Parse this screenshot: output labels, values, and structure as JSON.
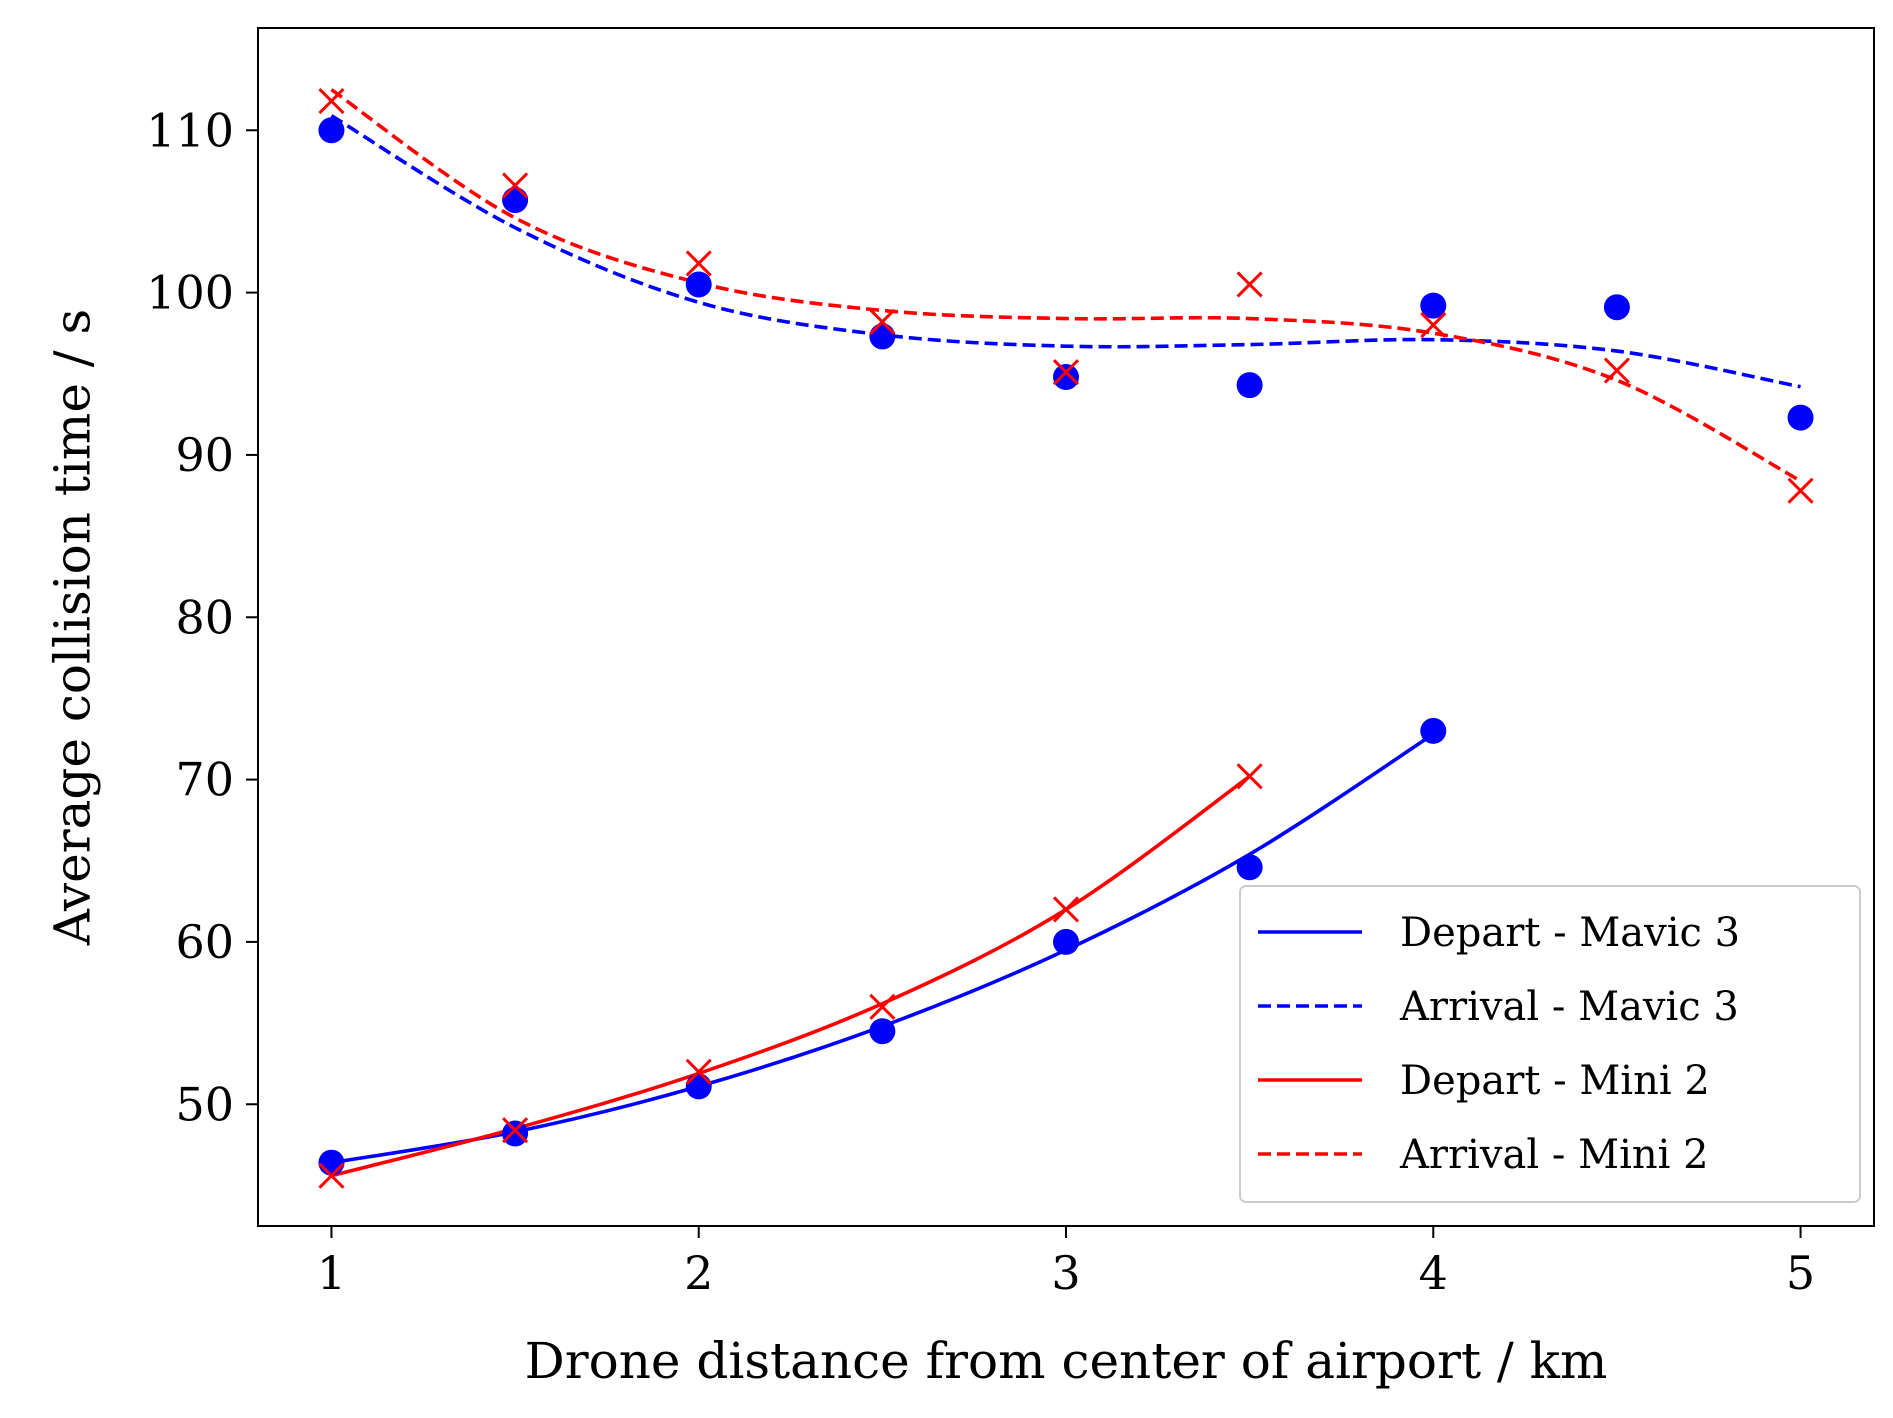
{
  "chart_data": {
    "type": "scatter",
    "title": "",
    "xlabel": "Drone distance from center of airport / km",
    "ylabel": "Average collision time / s",
    "xlim": [
      0.8,
      5.2
    ],
    "ylim": [
      42.5,
      116.3
    ],
    "xticks": [
      "1",
      "2",
      "3",
      "4",
      "5"
    ],
    "yticks": [
      "50",
      "60",
      "70",
      "80",
      "90",
      "100",
      "110"
    ],
    "grid": false,
    "legend_position": "lower-right",
    "colors": {
      "mavic": "#0000ff",
      "mini": "#ff0000"
    },
    "markers": [
      {
        "series": "Mavic 3 depart data",
        "marker": "circle",
        "color": "#0000ff",
        "points": [
          [
            1,
            46.4
          ],
          [
            1.5,
            48.2
          ],
          [
            2,
            51.1
          ],
          [
            2.5,
            54.5
          ],
          [
            3,
            60.0
          ],
          [
            3.5,
            64.6
          ],
          [
            4,
            73.0
          ]
        ]
      },
      {
        "series": "Mavic 3 arrival data",
        "marker": "circle",
        "color": "#0000ff",
        "points": [
          [
            1,
            110.0
          ],
          [
            1.5,
            105.7
          ],
          [
            2,
            100.5
          ],
          [
            2.5,
            97.3
          ],
          [
            3,
            94.8
          ],
          [
            3.5,
            94.3
          ],
          [
            4,
            99.2
          ],
          [
            4.5,
            99.1
          ],
          [
            5,
            92.3
          ]
        ]
      },
      {
        "series": "Mini 2 depart data",
        "marker": "x",
        "color": "#ff0000",
        "points": [
          [
            1,
            45.6
          ],
          [
            1.5,
            48.4
          ],
          [
            2,
            52.0
          ],
          [
            2.5,
            56.0
          ],
          [
            3,
            62.0
          ],
          [
            3.5,
            70.2
          ]
        ]
      },
      {
        "series": "Mini 2 arrival data",
        "marker": "x",
        "color": "#ff0000",
        "points": [
          [
            1,
            111.8
          ],
          [
            1.5,
            106.6
          ],
          [
            2,
            101.8
          ],
          [
            2.5,
            98.2
          ],
          [
            3,
            95.1
          ],
          [
            3.5,
            100.5
          ],
          [
            4,
            98.0
          ],
          [
            4.5,
            95.2
          ],
          [
            5,
            87.8
          ]
        ]
      }
    ],
    "series": [
      {
        "name": "Depart - Mavic 3",
        "style": "solid",
        "color": "#0000ff",
        "x": [
          1,
          1.5,
          2,
          2.5,
          3,
          3.5,
          4
        ],
        "y": [
          46.4,
          48.3,
          51.1,
          54.8,
          59.5,
          65.4,
          72.8
        ]
      },
      {
        "name": "Arrival - Mavic 3",
        "style": "dashed",
        "color": "#0000ff",
        "x": [
          1,
          1.5,
          2,
          2.5,
          3,
          3.5,
          4,
          4.5,
          5
        ],
        "y": [
          110.9,
          104.0,
          99.4,
          97.4,
          96.7,
          96.8,
          97.1,
          96.4,
          94.2
        ]
      },
      {
        "name": "Depart - Mini 2",
        "style": "solid",
        "color": "#ff0000",
        "x": [
          1,
          1.5,
          2,
          2.5,
          3,
          3.5
        ],
        "y": [
          45.6,
          48.5,
          51.9,
          56.2,
          62.0,
          70.2
        ]
      },
      {
        "name": "Arrival - Mini 2",
        "style": "dashed",
        "color": "#ff0000",
        "x": [
          1,
          1.5,
          2,
          2.5,
          3,
          3.5,
          4,
          4.5,
          5
        ],
        "y": [
          112.5,
          104.6,
          100.6,
          98.9,
          98.4,
          98.4,
          97.5,
          94.6,
          88.4
        ]
      }
    ]
  }
}
